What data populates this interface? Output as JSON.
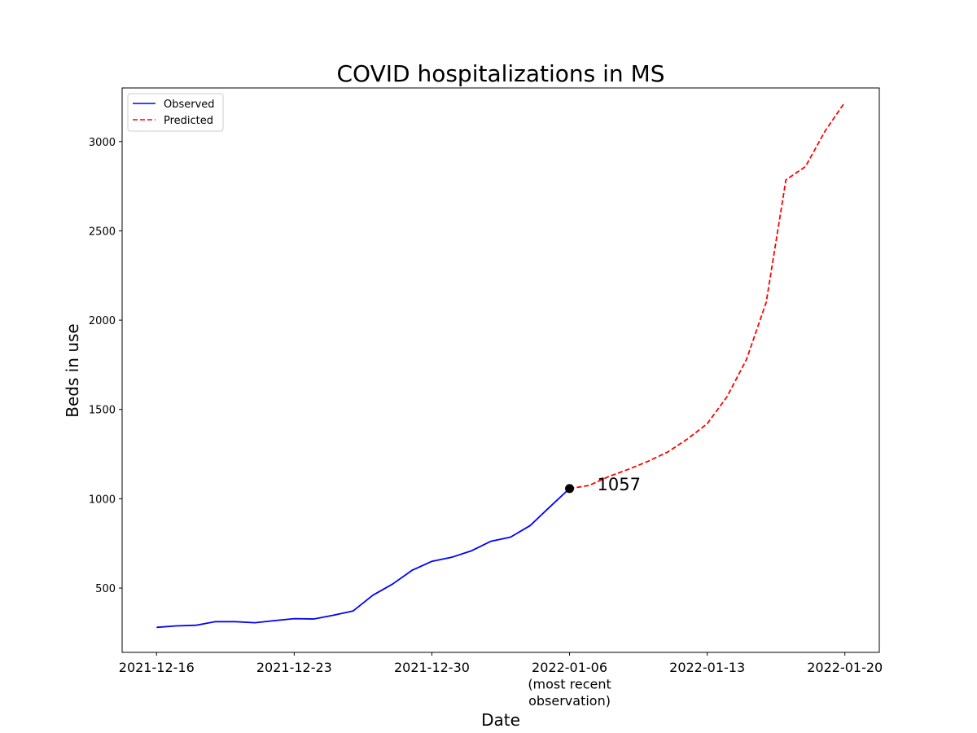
{
  "chart_data": {
    "type": "line",
    "title": "COVID hospitalizations in MS",
    "xlabel": "Date",
    "ylabel": "Beds in use",
    "x_start": "2021-12-16",
    "xlim_days": [
      -1.75,
      36.75
    ],
    "ylim": [
      140,
      3300
    ],
    "x_ticks": [
      {
        "day": 0,
        "lines": [
          "2021-12-16"
        ]
      },
      {
        "day": 7,
        "lines": [
          "2021-12-23"
        ]
      },
      {
        "day": 14,
        "lines": [
          "2021-12-30"
        ]
      },
      {
        "day": 21,
        "lines": [
          "2022-01-06",
          "(most recent",
          "observation)"
        ]
      },
      {
        "day": 28,
        "lines": [
          "2022-01-13"
        ]
      },
      {
        "day": 35,
        "lines": [
          "2022-01-20"
        ]
      }
    ],
    "y_ticks": [
      500,
      1000,
      1500,
      2000,
      2500,
      3000
    ],
    "series": [
      {
        "name": "Observed",
        "color": "#0000ff",
        "style": "solid",
        "x": [
          0,
          1,
          2,
          3,
          4,
          5,
          6,
          7,
          8,
          9,
          10,
          11,
          12,
          13,
          14,
          15,
          16,
          17,
          18,
          19,
          20,
          21
        ],
        "values": [
          280,
          288,
          292,
          312,
          312,
          306,
          318,
          329,
          327,
          348,
          372,
          460,
          522,
          600,
          650,
          672,
          708,
          762,
          785,
          850,
          955,
          1057
        ]
      },
      {
        "name": "Predicted",
        "color": "#ff0000",
        "style": "dashed",
        "x": [
          21,
          22,
          23,
          24,
          25,
          26,
          27,
          28,
          29,
          30,
          31,
          32,
          33,
          34,
          35
        ],
        "values": [
          1057,
          1075,
          1125,
          1165,
          1210,
          1262,
          1335,
          1420,
          1570,
          1780,
          2100,
          2785,
          2860,
          3060,
          3220
        ]
      }
    ],
    "marker": {
      "day": 21,
      "value": 1057,
      "label": "1057",
      "color": "#000000"
    },
    "legend": {
      "position": "top-left",
      "entries": [
        "Observed",
        "Predicted"
      ]
    }
  }
}
